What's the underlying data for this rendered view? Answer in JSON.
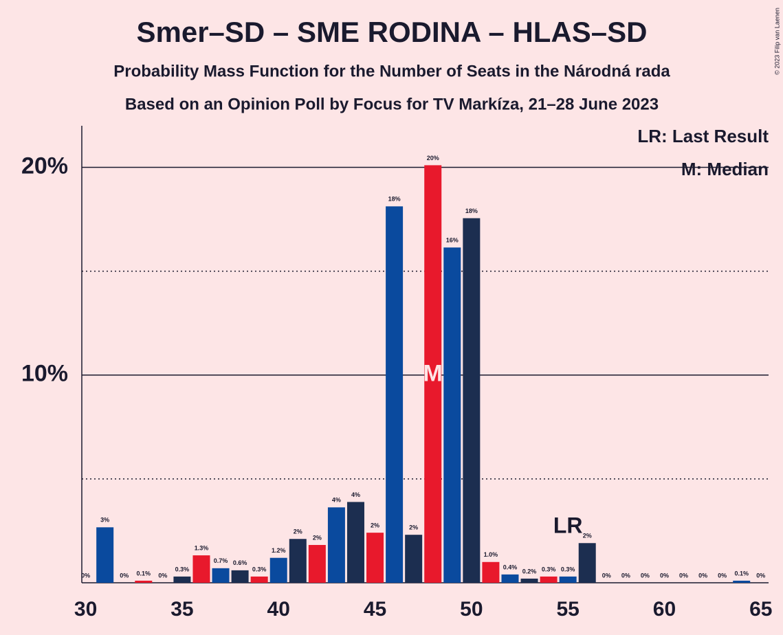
{
  "chart_data": {
    "type": "bar",
    "title": "Smer–SD – SME RODINA – HLAS–SD",
    "subtitle": "Probability Mass Function for the Number of Seats in the Národná rada",
    "subtitle2": "Based on an Opinion Poll by Focus for TV Markíza, 21–28 June 2023",
    "copyright": "© 2023 Filip van Laenen",
    "x": [
      30,
      31,
      32,
      33,
      34,
      35,
      36,
      37,
      38,
      39,
      40,
      41,
      42,
      43,
      44,
      45,
      46,
      47,
      48,
      49,
      50,
      51,
      52,
      53,
      54,
      55,
      56,
      57,
      58,
      59,
      60,
      61,
      62,
      63,
      64,
      65
    ],
    "values": [
      0,
      2.67,
      0,
      0.1,
      0,
      0.3,
      1.32,
      0.7,
      0.6,
      0.3,
      1.2,
      2.11,
      1.82,
      3.63,
      3.89,
      2.41,
      18.12,
      2.31,
      20.1,
      16.14,
      17.55,
      1.0,
      0.4,
      0.2,
      0.3,
      0.3,
      1.91,
      0,
      0,
      0,
      0,
      0,
      0,
      0,
      0.1,
      0
    ],
    "value_labels": [
      "0%",
      "3%",
      "0%",
      "0.1%",
      "0%",
      "0.3%",
      "1.3%",
      "0.7%",
      "0.6%",
      "0.3%",
      "1.2%",
      "2%",
      "2%",
      "4%",
      "4%",
      "2%",
      "18%",
      "2%",
      "20%",
      "16%",
      "18%",
      "1.0%",
      "0.4%",
      "0.2%",
      "0.3%",
      "0.3%",
      "2%",
      "0%",
      "0%",
      "0%",
      "0%",
      "0%",
      "0%",
      "0%",
      "0.1%",
      "0%"
    ],
    "colors": [
      "#e8192c",
      "#0a4a9e",
      "#1c2e50"
    ],
    "xlim": [
      29.8,
      65.4
    ],
    "xticks": [
      30,
      35,
      40,
      45,
      50,
      55,
      60,
      65
    ],
    "ylim": [
      0,
      22
    ],
    "yticks": [
      {
        "value": 10,
        "label": "10%"
      },
      {
        "value": 20,
        "label": "20%"
      }
    ],
    "minor_grid": [
      5,
      15
    ],
    "last_result": 55,
    "last_result_label": "LR",
    "median": 48,
    "median_label": "M",
    "legend": [
      "LR: Last Result",
      "M: Median"
    ]
  }
}
